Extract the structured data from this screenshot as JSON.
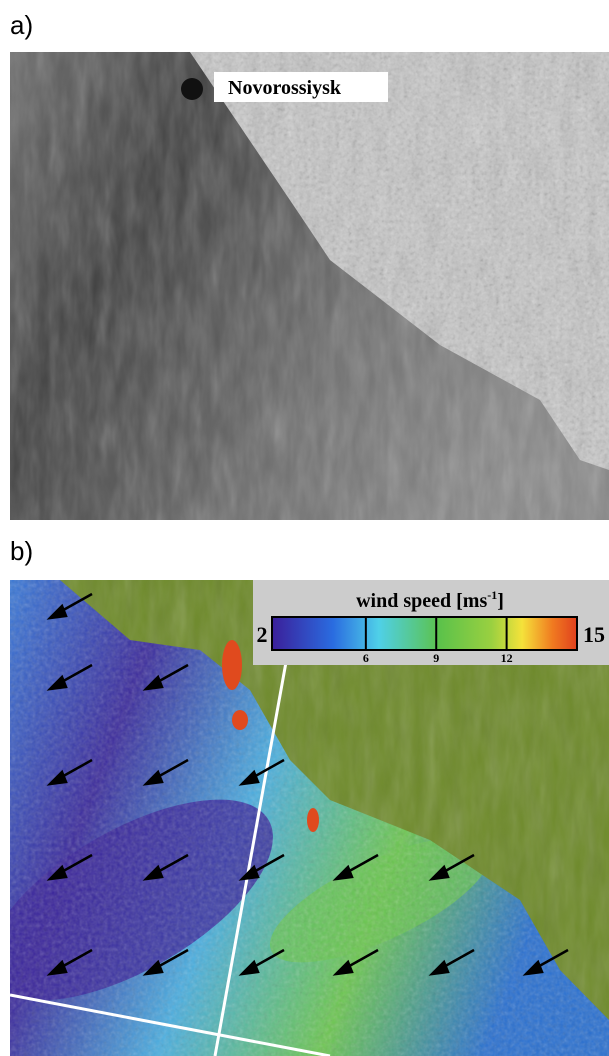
{
  "panel_a": {
    "label": "a)",
    "place": "Novorossiysk"
  },
  "panel_b": {
    "label": "b)",
    "colorbar": {
      "title": "wind speed [ms",
      "title_sup": "-1",
      "title_end": "]",
      "lim": [
        2,
        15
      ],
      "ticks": [
        6,
        9,
        12
      ]
    }
  }
}
